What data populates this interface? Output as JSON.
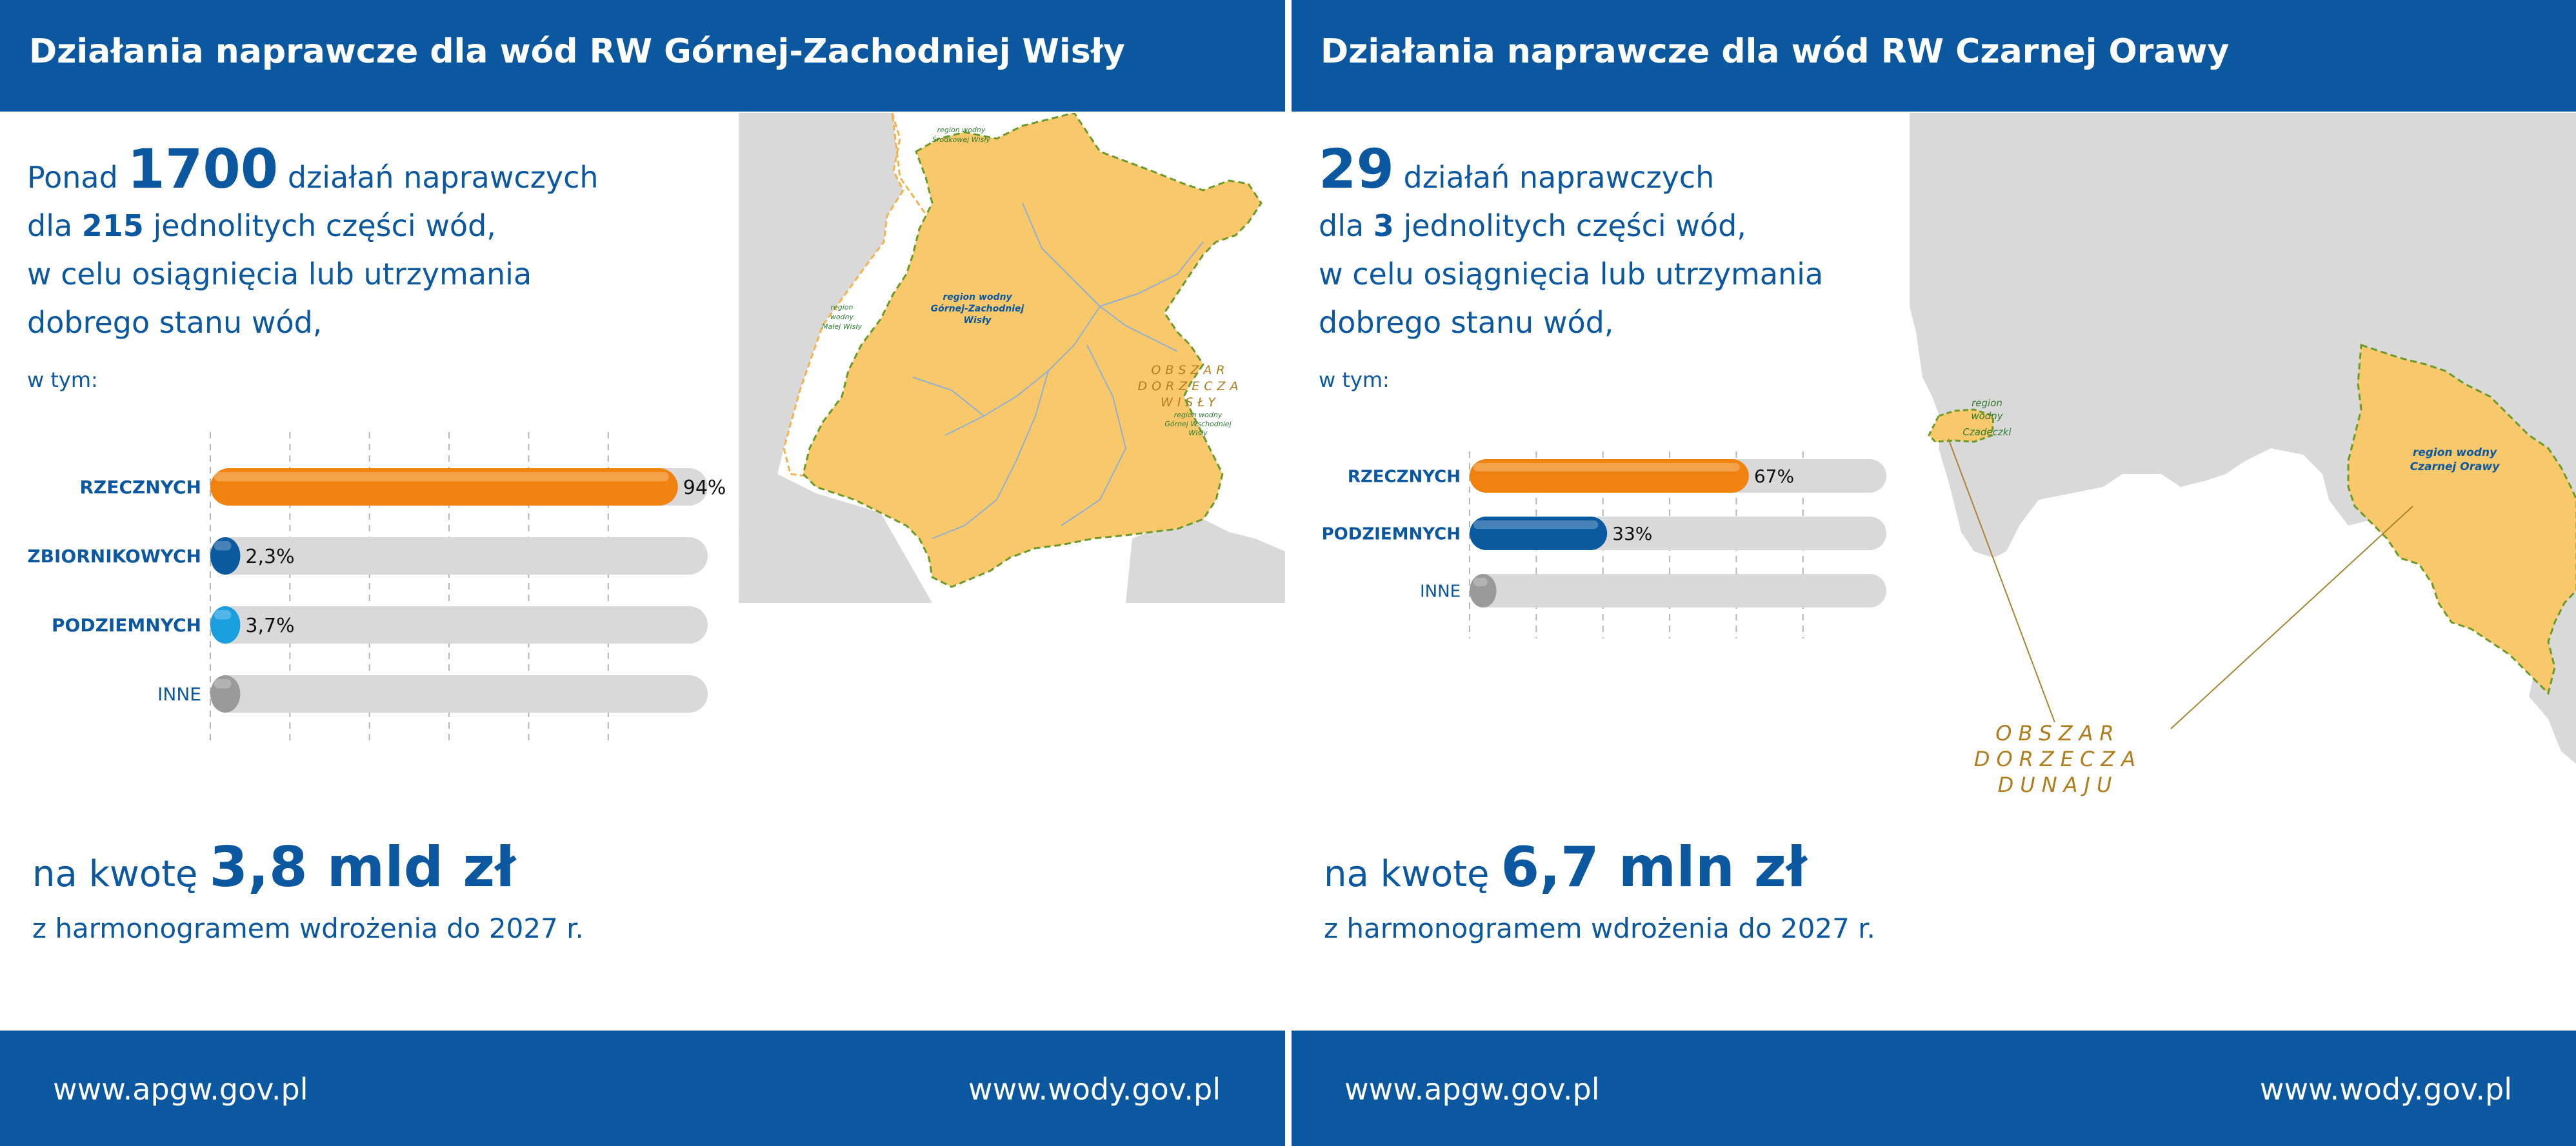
{
  "left": {
    "title": "Działania naprawcze dla wód RW Górnej-Zachodniej Wisły",
    "summary": {
      "line1_prefix": "Ponad",
      "line1_number": "1700",
      "line1_suffix": "działań naprawczych",
      "line2_prefix": "dla",
      "line2_number": "215",
      "line2_suffix": "jednolitych części wód,",
      "line3": "w celu osiągnięcia lub utrzymania",
      "line4": "dobrego stanu wód,",
      "in_which": "w tym:"
    },
    "amount_prefix": "na kwotę",
    "amount_value": "3,8 mld zł",
    "schedule": "z harmonogramem wdrożenia do 2027 r.",
    "map_labels": {
      "main_region": [
        "region wodny",
        "Górnej-Zachodniej",
        "Wisły"
      ],
      "region_srodkowej": [
        "region wodny",
        "Środkowej Wisły"
      ],
      "region_malej": [
        "region",
        "wodny",
        "Małej Wisły"
      ],
      "basin": [
        "OBSZAR",
        "DORZECZA",
        "WISŁY"
      ],
      "region_wschodniej": [
        "region wodny",
        "Górnej Wschodniej",
        "Wisły"
      ]
    }
  },
  "right": {
    "title": "Działania naprawcze dla wód RW Czarnej Orawy",
    "summary": {
      "line1_number": "29",
      "line1_suffix": "działań naprawczych",
      "line2_prefix": "dla",
      "line2_number": "3",
      "line2_suffix": "jednolitych części wód,",
      "line3": "w celu osiągnięcia lub utrzymania",
      "line4": "dobrego stanu wód,",
      "in_which": "w tym:"
    },
    "amount_prefix": "na kwotę",
    "amount_value": "6,7 mln zł",
    "schedule": "z harmonogramem wdrożenia do 2027 r.",
    "map_labels": {
      "main_region": [
        "region wodny",
        "Czarnej Orawy"
      ],
      "small_region": [
        "region",
        "wodny",
        "Czadeczki"
      ],
      "basin": [
        "OBSZAR",
        "DORZECZA",
        "DUNAJU"
      ]
    }
  },
  "footer": {
    "link_left": "www.apgw.gov.pl",
    "link_right": "www.wody.gov.pl"
  },
  "colors": {
    "header": "#0b58a0",
    "text": "#0b58a0",
    "rzeczne": "#f0820f",
    "zbiornikowe": "#0b5aa0",
    "podziemne": "#1a9ee0",
    "inne": "#9a9a9a",
    "track": "#d9d9d9",
    "map_fill": "#f9c86a",
    "map_outside": "#d9d9d9",
    "basin_label": "#b07d1c"
  },
  "chart_data": [
    {
      "type": "bar",
      "orientation": "horizontal",
      "categories": [
        "RZECZNYCH",
        "ZBIORNIKOWYCH",
        "PODZIEMNYCH",
        "INNE"
      ],
      "values": [
        94,
        2.3,
        3.7,
        null
      ],
      "value_labels": [
        "94%",
        "2,3%",
        "3,7%",
        ""
      ],
      "xlim": [
        0,
        100
      ],
      "grid": "vertical dashed",
      "legend": "none"
    },
    {
      "type": "bar",
      "orientation": "horizontal",
      "categories": [
        "RZECZNYCH",
        "PODZIEMNYCH",
        "INNE"
      ],
      "values": [
        67,
        33,
        null
      ],
      "value_labels": [
        "67%",
        "33%",
        ""
      ],
      "xlim": [
        0,
        100
      ],
      "grid": "vertical dashed",
      "legend": "none"
    }
  ]
}
